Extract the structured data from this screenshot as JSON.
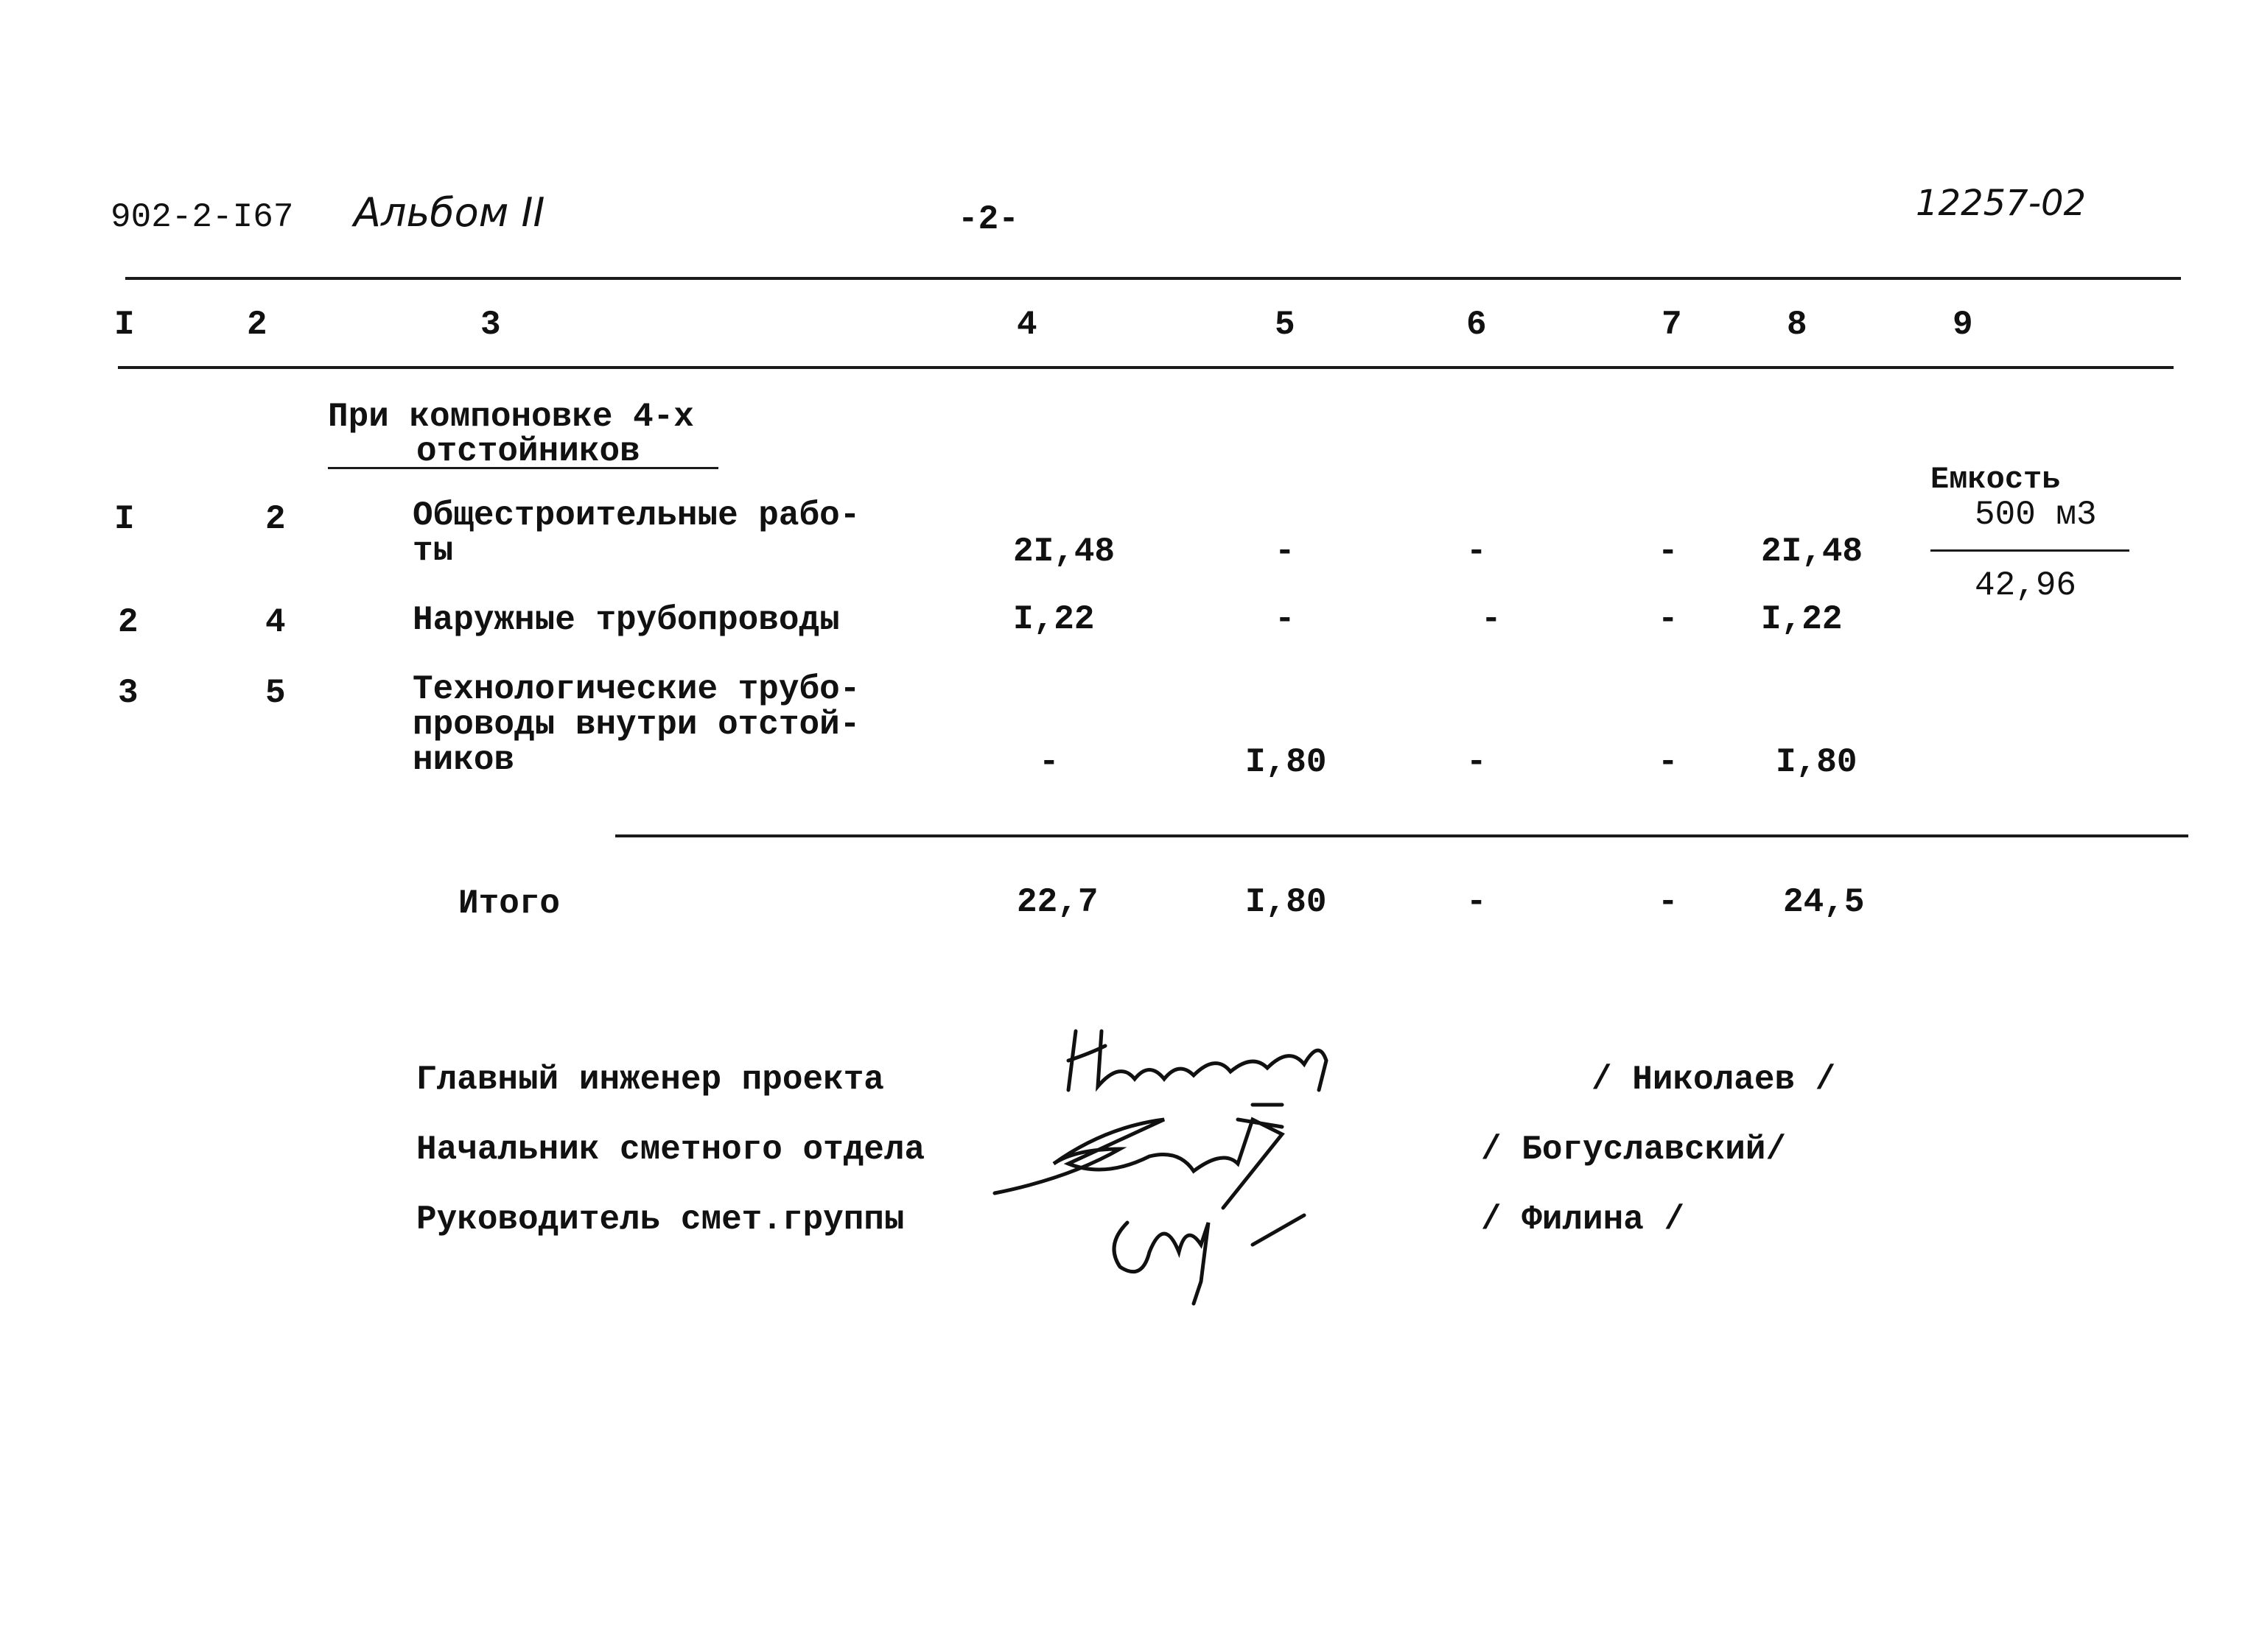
{
  "header": {
    "project_code": "902-2-I67",
    "album": "Альбом II",
    "page_number": "-2-",
    "doc_number": "12257-02"
  },
  "table": {
    "column_headers": [
      "I",
      "2",
      "3",
      "4",
      "5",
      "6",
      "7",
      "8",
      "9"
    ],
    "section_title_line1": "При компоновке 4-х",
    "section_title_line2": "отстойников",
    "rows": [
      {
        "n": "I",
        "code": "2",
        "name": "Общестроительные рабо-\nты",
        "c4": "2I,48",
        "c5": "-",
        "c6": "-",
        "c7": "-",
        "c8": "2I,48"
      },
      {
        "n": "2",
        "code": "4",
        "name": "Наружные трубопроводы",
        "c4": "I,22",
        "c5": "-",
        "c6": "-",
        "c7": "-",
        "c8": "I,22"
      },
      {
        "n": "3",
        "code": "5",
        "name": "Технологические трубо-\nпроводы внутри отстой-\nников",
        "c4": "-",
        "c5": "I,80",
        "c6": "-",
        "c7": "-",
        "c8": "I,80"
      }
    ],
    "note": {
      "line1": "Емкость",
      "line2": "500 м3",
      "value": "42,96"
    },
    "total": {
      "label": "Итого",
      "c4": "22,7",
      "c5": "I,80",
      "c6": "-",
      "c7": "-",
      "c8": "24,5"
    }
  },
  "signatures": [
    {
      "role": "Главный инженер проекта",
      "name": "/ Николаев /",
      "handwritten": "Николаев"
    },
    {
      "role": "Начальник сметного отдела",
      "name": "/ Богуславский/"
    },
    {
      "role": "Руководитель смет.группы",
      "name": "/ Филина /"
    }
  ]
}
